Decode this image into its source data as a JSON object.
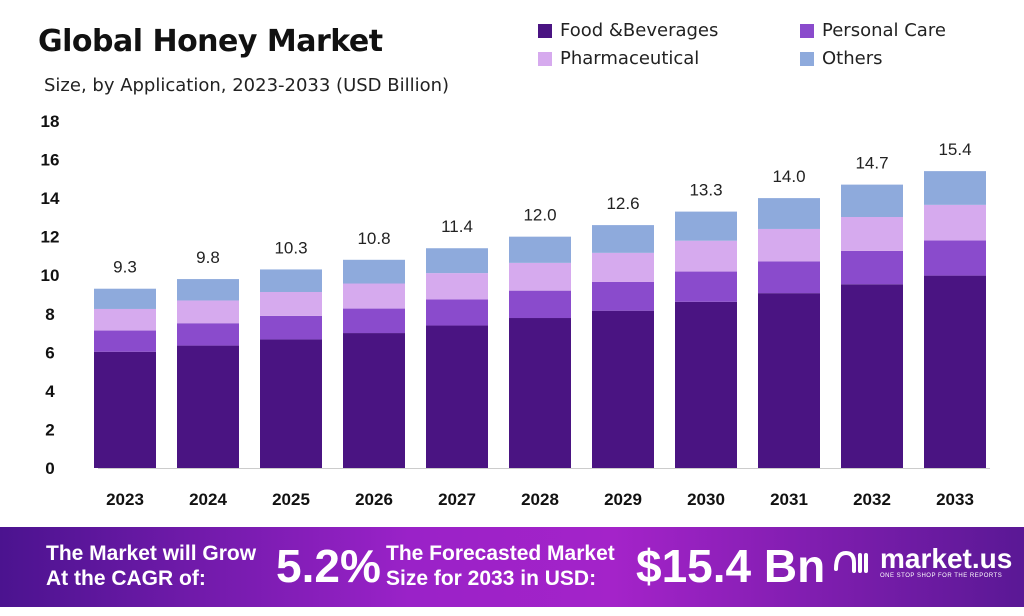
{
  "chart_data": {
    "type": "bar",
    "stacked": true,
    "title": "Global Honey Market",
    "subtitle": "Size, by Application, 2023-2033 (USD Billion)",
    "xlabel": "",
    "ylabel": "",
    "ylim": [
      0,
      18
    ],
    "yticks": [
      "0",
      "2",
      "4",
      "6",
      "8",
      "10",
      "12",
      "14",
      "16",
      "18"
    ],
    "grid": false,
    "legend_position": "top-right",
    "categories": [
      "2023",
      "2024",
      "2025",
      "2026",
      "2027",
      "2028",
      "2029",
      "2030",
      "2031",
      "2032",
      "2033"
    ],
    "totals": [
      "9.3",
      "9.8",
      "10.3",
      "10.8",
      "11.4",
      "12.0",
      "12.6",
      "13.3",
      "14.0",
      "14.7",
      "15.4"
    ],
    "series": [
      {
        "name": "Food &Beverages",
        "color": "#4a1482",
        "values": [
          6.03,
          6.35,
          6.67,
          7.0,
          7.39,
          7.78,
          8.16,
          8.62,
          9.07,
          9.53,
          9.98
        ]
      },
      {
        "name": "Personal Care",
        "color": "#8a4bcc",
        "values": [
          1.1,
          1.16,
          1.22,
          1.27,
          1.35,
          1.42,
          1.49,
          1.57,
          1.65,
          1.73,
          1.82
        ]
      },
      {
        "name": "Pharmaceutical",
        "color": "#d6aaee",
        "values": [
          1.12,
          1.18,
          1.24,
          1.3,
          1.37,
          1.44,
          1.51,
          1.6,
          1.68,
          1.76,
          1.85
        ]
      },
      {
        "name": "Others",
        "color": "#8eaadc",
        "values": [
          1.05,
          1.11,
          1.17,
          1.23,
          1.29,
          1.36,
          1.44,
          1.51,
          1.6,
          1.68,
          1.75
        ]
      }
    ]
  },
  "footer": {
    "cagr_label_1": "The Market will Grow",
    "cagr_label_2": "At the CAGR of:",
    "cagr_value": "5.2%",
    "forecast_label_1": "The Forecasted Market",
    "forecast_label_2": "Size for 2033 in USD:",
    "forecast_value": "$15.4 Bn",
    "brand": "market.us",
    "tagline": "ONE STOP SHOP FOR THE REPORTS"
  }
}
